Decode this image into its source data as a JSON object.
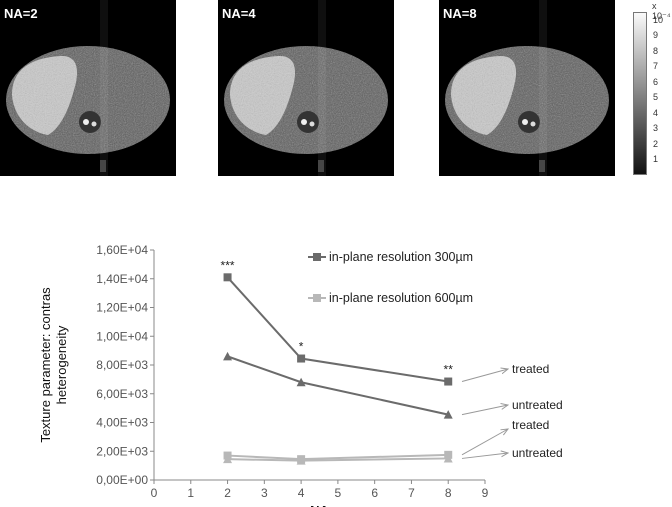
{
  "panels": [
    {
      "label": "NA=2"
    },
    {
      "label": "NA=4"
    },
    {
      "label": "NA=8"
    }
  ],
  "colorbar": {
    "exponent": "x 10⁻⁴",
    "ticks": [
      "10",
      "9",
      "8",
      "7",
      "6",
      "5",
      "4",
      "3",
      "2",
      "1"
    ]
  },
  "chart_data": {
    "type": "line",
    "title": "",
    "xlabel": "NA",
    "ylabel_lines": [
      "Texture parameter: contras",
      "heterogeneity"
    ],
    "xlim": [
      0,
      9
    ],
    "ylim": [
      0,
      16000
    ],
    "x_ticks": [
      "0",
      "1",
      "2",
      "3",
      "4",
      "5",
      "6",
      "7",
      "8",
      "9"
    ],
    "y_ticks": [
      "0,00E+00",
      "2,00E+03",
      "4,00E+03",
      "6,00E+03",
      "8,00E+03",
      "1,00E+04",
      "1,20E+04",
      "1,40E+04",
      "1,60E+04"
    ],
    "series": [
      {
        "name": "in-plane resolution 300µm",
        "marker": "square",
        "color": "#6b6b6b",
        "x": [
          2,
          4,
          8
        ],
        "y": [
          14100,
          8450,
          6850
        ]
      },
      {
        "name": "",
        "marker": "triangle",
        "color": "#6b6b6b",
        "x": [
          2,
          4,
          8
        ],
        "y": [
          8600,
          6800,
          4550
        ]
      },
      {
        "name": "in-plane resolution 600µm",
        "marker": "square",
        "color": "#b8b8b8",
        "x": [
          2,
          4,
          8
        ],
        "y": [
          1700,
          1450,
          1750
        ]
      },
      {
        "name": "",
        "marker": "triangle",
        "color": "#b8b8b8",
        "x": [
          2,
          4,
          8
        ],
        "y": [
          1450,
          1350,
          1500
        ]
      }
    ],
    "significance": [
      {
        "x": 2,
        "y": 14100,
        "text": "***"
      },
      {
        "x": 4,
        "y": 8450,
        "text": "*"
      },
      {
        "x": 8,
        "y": 6850,
        "text": "**"
      }
    ],
    "annotations": [
      {
        "text": "treated",
        "points_to": 6850
      },
      {
        "text": "untreated",
        "points_to": 4550
      },
      {
        "text": "treated",
        "points_to": 1750
      },
      {
        "text": "untreated",
        "points_to": 1500
      }
    ],
    "legend_placement": "upper-right inside plot"
  }
}
